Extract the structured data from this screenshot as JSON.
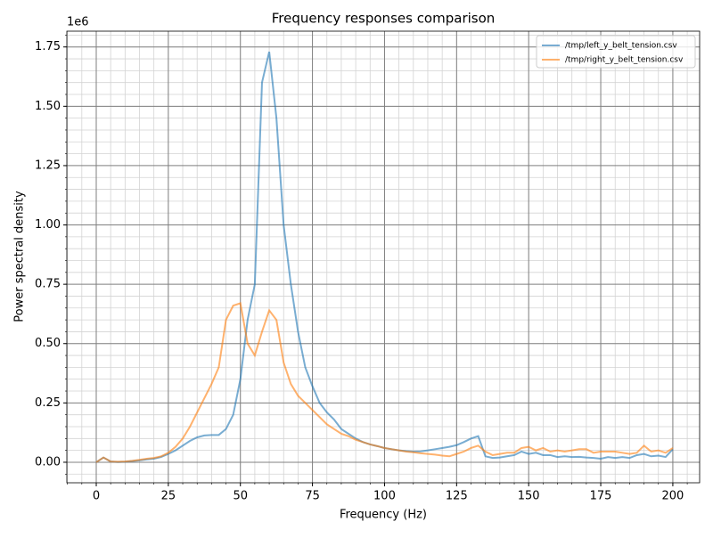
{
  "chart_data": {
    "type": "line",
    "title": "Frequency responses comparison",
    "x_label": "Frequency (Hz)",
    "y_label": "Power spectral density",
    "y_offset_label": "1e6",
    "x": [
      0,
      2.5,
      5,
      7.5,
      10,
      12.5,
      15,
      17.5,
      20,
      22.5,
      25,
      27.5,
      30,
      32.5,
      35,
      37.5,
      40,
      42.5,
      45,
      47.5,
      50,
      52.5,
      55,
      57.5,
      60,
      62.5,
      65,
      67.5,
      70,
      72.5,
      75,
      77.5,
      80,
      82.5,
      85,
      87.5,
      90,
      92.5,
      95,
      97.5,
      100,
      102.5,
      105,
      107.5,
      110,
      112.5,
      115,
      117.5,
      120,
      122.5,
      125,
      127.5,
      130,
      132.5,
      135,
      137.5,
      140,
      142.5,
      145,
      147.5,
      150,
      152.5,
      155,
      157.5,
      160,
      162.5,
      165,
      167.5,
      170,
      172.5,
      175,
      177.5,
      180,
      182.5,
      185,
      187.5,
      190,
      192.5,
      195,
      197.5,
      200
    ],
    "series": [
      {
        "name": "/tmp/left_y_belt_tension.csv",
        "color": "#1f77b4",
        "values": [
          0,
          0.02,
          0.003,
          0.001,
          0.002,
          0.005,
          0.008,
          0.012,
          0.015,
          0.022,
          0.035,
          0.05,
          0.07,
          0.09,
          0.105,
          0.113,
          0.115,
          0.115,
          0.14,
          0.2,
          0.35,
          0.6,
          0.75,
          1.6,
          1.73,
          1.45,
          1.0,
          0.75,
          0.55,
          0.4,
          0.32,
          0.25,
          0.21,
          0.18,
          0.14,
          0.12,
          0.1,
          0.085,
          0.075,
          0.068,
          0.06,
          0.055,
          0.05,
          0.047,
          0.045,
          0.046,
          0.05,
          0.055,
          0.06,
          0.065,
          0.072,
          0.085,
          0.1,
          0.11,
          0.025,
          0.018,
          0.02,
          0.025,
          0.03,
          0.045,
          0.035,
          0.04,
          0.03,
          0.03,
          0.022,
          0.025,
          0.022,
          0.023,
          0.02,
          0.018,
          0.015,
          0.022,
          0.018,
          0.022,
          0.018,
          0.03,
          0.035,
          0.025,
          0.028,
          0.022,
          0.055
        ]
      },
      {
        "name": "/tmp/right_y_belt_tension.csv",
        "color": "#ff7f0e",
        "values": [
          0,
          0.02,
          0.003,
          0.002,
          0.003,
          0.006,
          0.01,
          0.015,
          0.018,
          0.025,
          0.04,
          0.065,
          0.1,
          0.15,
          0.21,
          0.27,
          0.33,
          0.4,
          0.6,
          0.66,
          0.67,
          0.5,
          0.45,
          0.55,
          0.64,
          0.6,
          0.42,
          0.33,
          0.28,
          0.25,
          0.22,
          0.19,
          0.16,
          0.14,
          0.12,
          0.11,
          0.095,
          0.085,
          0.075,
          0.068,
          0.06,
          0.055,
          0.05,
          0.045,
          0.042,
          0.038,
          0.035,
          0.032,
          0.028,
          0.025,
          0.035,
          0.045,
          0.06,
          0.07,
          0.045,
          0.03,
          0.035,
          0.04,
          0.04,
          0.06,
          0.065,
          0.05,
          0.06,
          0.045,
          0.05,
          0.045,
          0.05,
          0.055,
          0.055,
          0.04,
          0.045,
          0.045,
          0.045,
          0.04,
          0.035,
          0.04,
          0.07,
          0.045,
          0.05,
          0.04,
          0.06
        ]
      }
    ],
    "xlim": [
      -10.2,
      209.3
    ],
    "ylim": [
      -0.0865,
      1.8165
    ],
    "xticks": [
      0,
      25,
      50,
      75,
      100,
      125,
      150,
      175,
      200
    ],
    "yticks": [
      {
        "value": 0,
        "label": "0.00"
      },
      0.25,
      {
        "value": 0.5,
        "label": "0.50"
      },
      0.75,
      {
        "value": 1,
        "label": "1.00"
      },
      1.25,
      {
        "value": 1.5,
        "label": "1.50"
      },
      1.75
    ],
    "grid": true,
    "minor_divisions": 5,
    "legend": "upper right"
  }
}
